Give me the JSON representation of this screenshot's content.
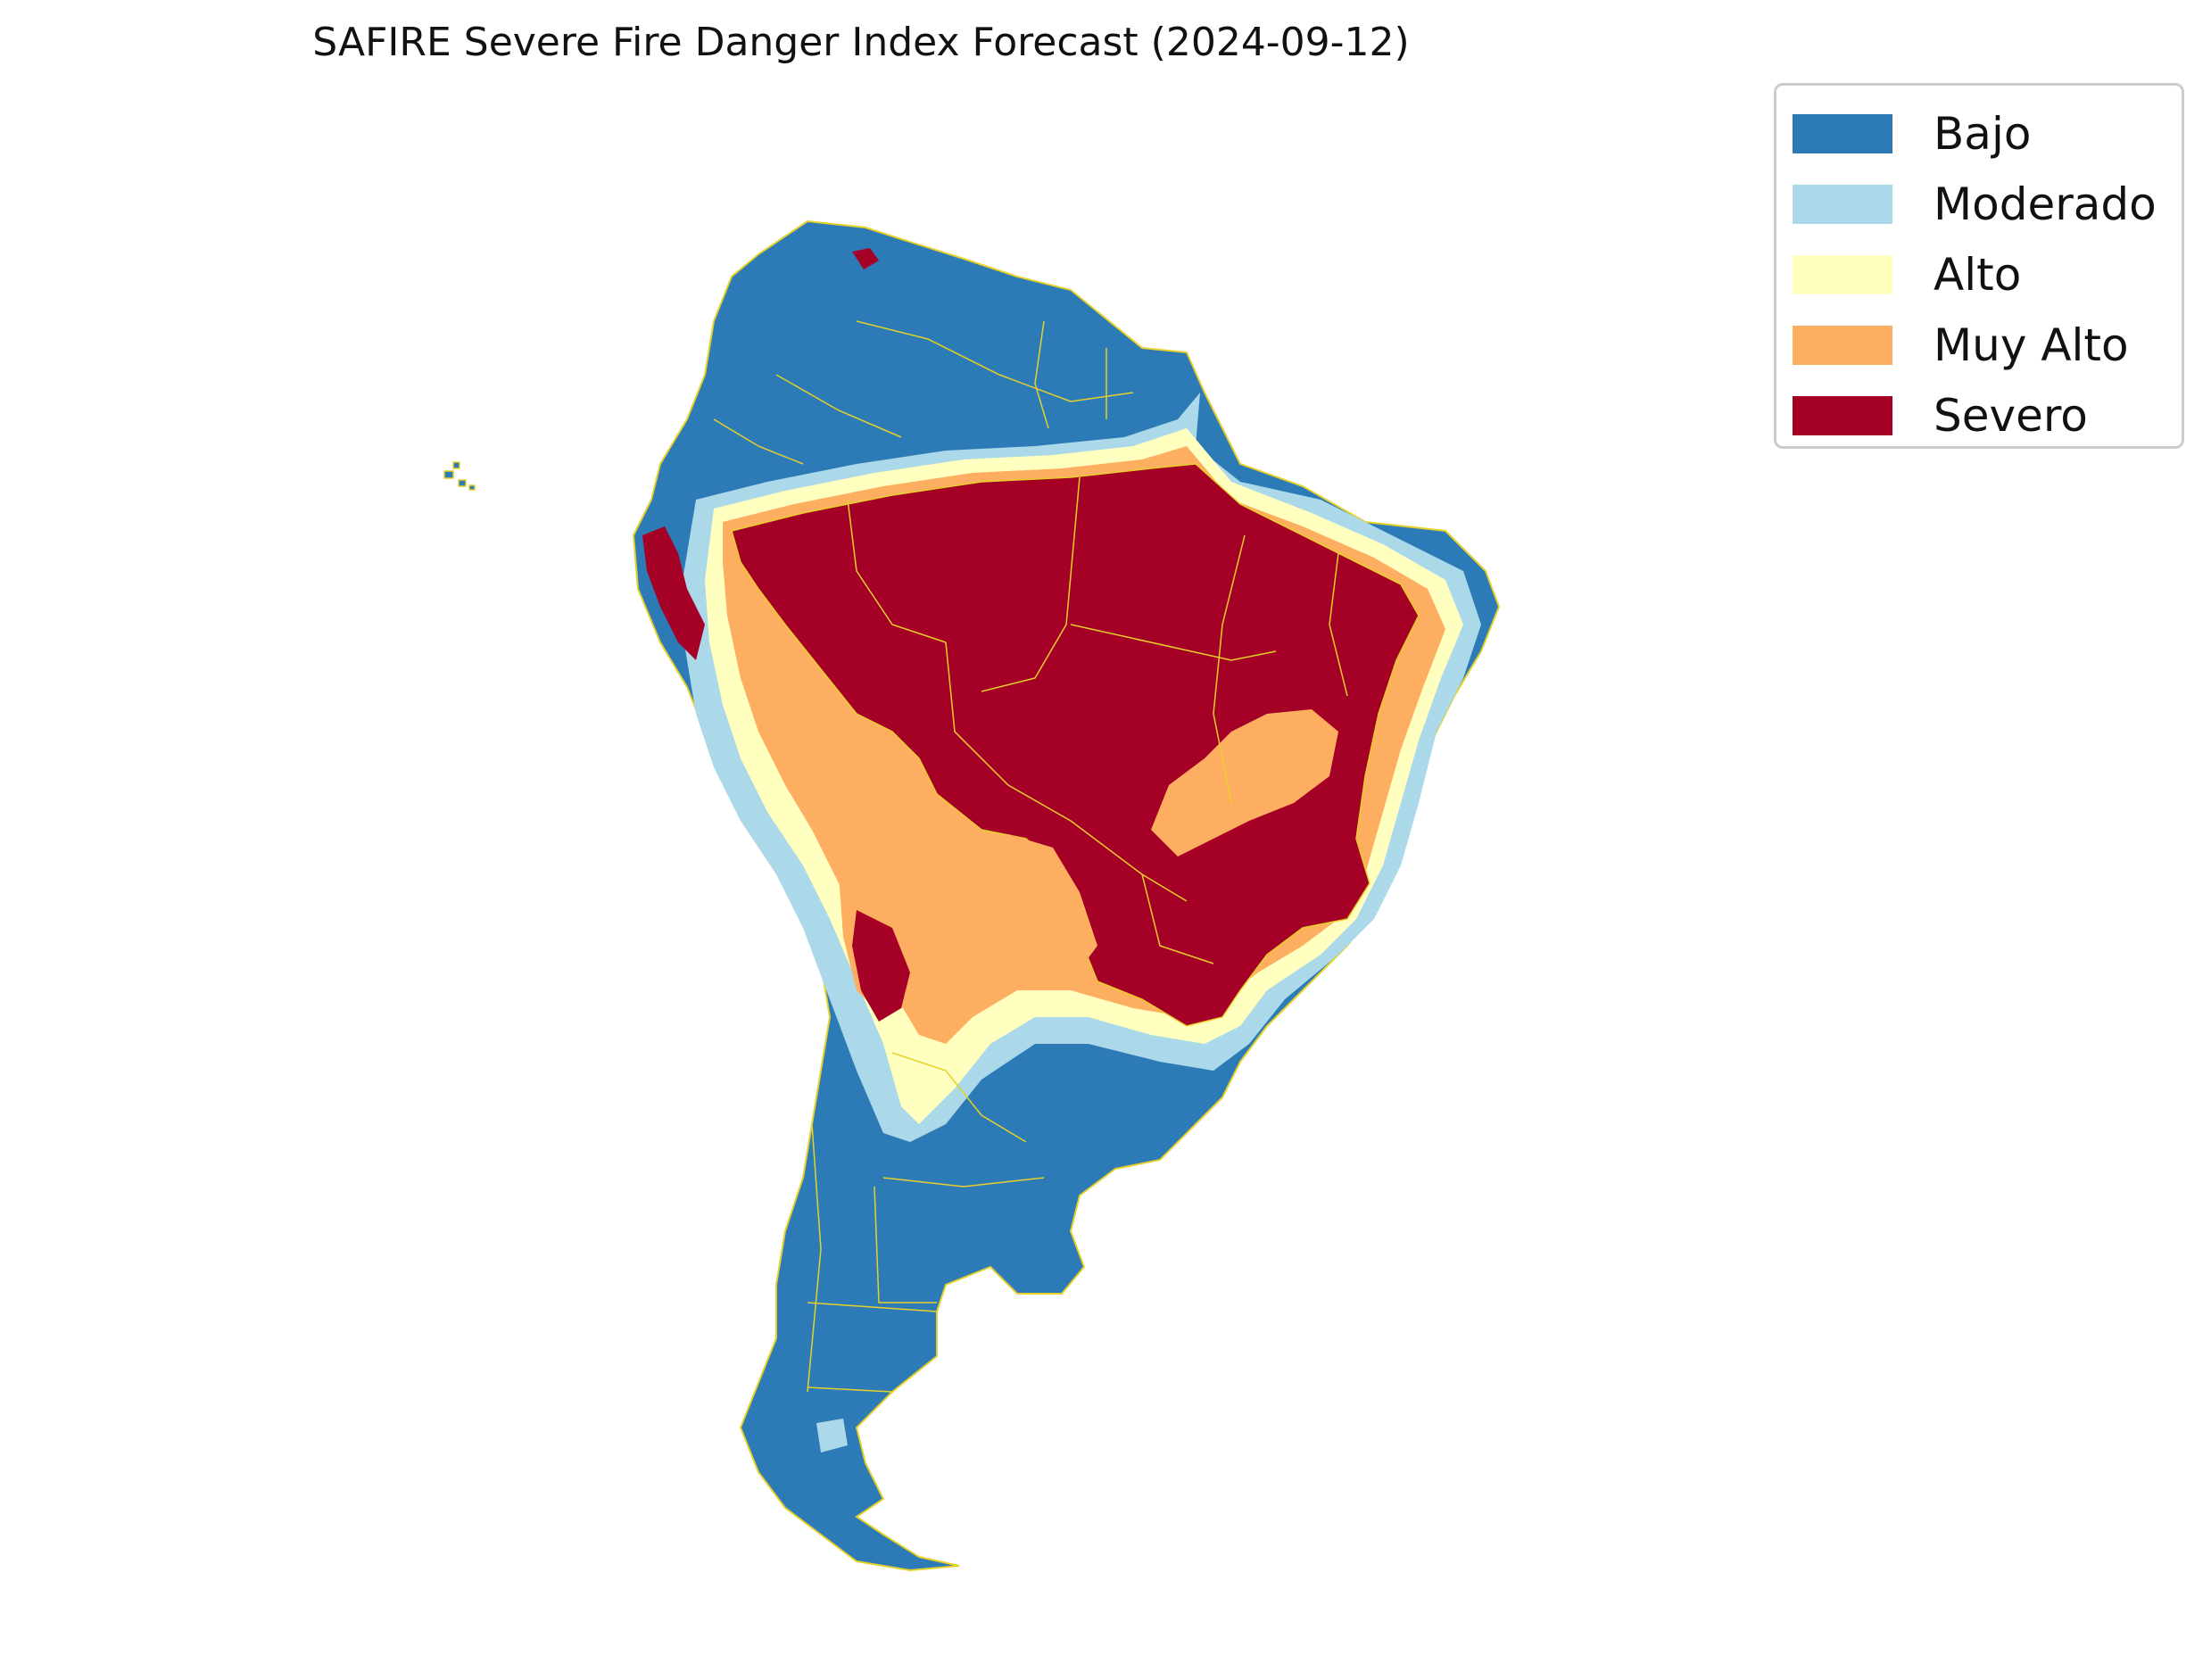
{
  "title": "SAFIRE Severe Fire Danger Index Forecast (2024-09-12)",
  "legend": [
    {
      "label": "Bajo",
      "color": "#2c7bb6"
    },
    {
      "label": "Moderado",
      "color": "#abd9e9"
    },
    {
      "label": "Alto",
      "color": "#ffffbf"
    },
    {
      "label": "Muy Alto",
      "color": "#fdae61"
    },
    {
      "label": "Severo",
      "color": "#a50026"
    }
  ],
  "border_color": "#e6d02a"
}
